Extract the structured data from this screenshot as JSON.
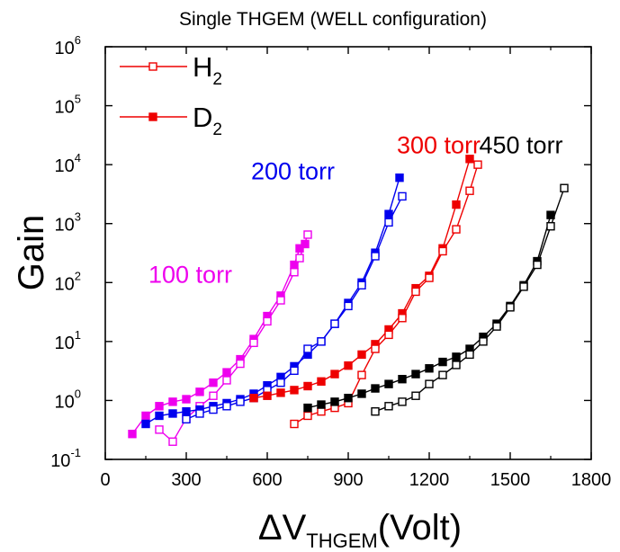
{
  "chart_data": {
    "type": "line",
    "title": "Single THGEM (WELL configuration)",
    "xlabel": {
      "main": "ΔV",
      "sub": "THGEM",
      "tail": "(Volt)"
    },
    "ylabel": "Gain",
    "xlim": [
      0,
      1800
    ],
    "ylim": [
      0.1,
      1000000
    ],
    "yscale": "log",
    "grid": false,
    "legend_position": "top-left",
    "x_ticks": [
      "0",
      "300",
      "600",
      "900",
      "1200",
      "1500",
      "1800"
    ],
    "y_ticks": [
      {
        "base": "10",
        "exp": "-1",
        "value": 0.1
      },
      {
        "base": "10",
        "exp": "0",
        "value": 1
      },
      {
        "base": "10",
        "exp": "1",
        "value": 10
      },
      {
        "base": "10",
        "exp": "2",
        "value": 100
      },
      {
        "base": "10",
        "exp": "3",
        "value": 1000
      },
      {
        "base": "10",
        "exp": "4",
        "value": 10000
      },
      {
        "base": "10",
        "exp": "5",
        "value": 100000
      },
      {
        "base": "10",
        "exp": "6",
        "value": 1000000
      }
    ],
    "legend": [
      {
        "base": "H",
        "sub": "2",
        "marker": "open-square",
        "color": "#ee0000"
      },
      {
        "base": "D",
        "sub": "2",
        "marker": "filled-square",
        "color": "#ee0000"
      }
    ],
    "annotations": [
      {
        "text": "100 torr",
        "color": "#ee00ee",
        "x": 160,
        "y": 100
      },
      {
        "text": "200 torr",
        "color": "#0000ee",
        "x": 540,
        "y": 5600
      },
      {
        "text": "300 torr",
        "color": "#ee0000",
        "x": 1080,
        "y": 15500
      },
      {
        "text": "450 torr",
        "color": "#000000",
        "x": 1385,
        "y": 15500
      }
    ],
    "series": [
      {
        "pressure": "100 torr",
        "gas": "D2",
        "color": "#ee00ee",
        "marker": "filled",
        "x": [
          100,
          150,
          200,
          250,
          300,
          350,
          400,
          450,
          500,
          550,
          600,
          650,
          700,
          720,
          740
        ],
        "y": [
          0.27,
          0.55,
          0.8,
          0.95,
          1.05,
          1.4,
          2.0,
          3.0,
          5.0,
          11,
          27,
          60,
          200,
          380,
          450
        ]
      },
      {
        "pressure": "100 torr",
        "gas": "H2",
        "color": "#ee00ee",
        "marker": "open",
        "x": [
          200,
          250,
          300,
          350,
          400,
          450,
          500,
          550,
          600,
          650,
          700,
          720,
          750
        ],
        "y": [
          0.32,
          0.2,
          0.5,
          0.8,
          1.2,
          2.2,
          4.2,
          9.5,
          22,
          50,
          150,
          260,
          650
        ]
      },
      {
        "pressure": "200 torr",
        "gas": "D2",
        "color": "#0000ee",
        "marker": "filled",
        "x": [
          150,
          200,
          250,
          300,
          350,
          400,
          450,
          500,
          550,
          600,
          650,
          700,
          750,
          800,
          850,
          900,
          950,
          1000,
          1050,
          1090
        ],
        "y": [
          0.4,
          0.55,
          0.6,
          0.65,
          0.7,
          0.8,
          0.9,
          1.05,
          1.3,
          1.8,
          2.5,
          3.8,
          6.0,
          10,
          20,
          45,
          100,
          320,
          1450,
          6000
        ]
      },
      {
        "pressure": "200 torr",
        "gas": "H2",
        "color": "#0000ee",
        "marker": "open",
        "x": [
          300,
          350,
          400,
          450,
          500,
          550,
          600,
          650,
          700,
          750,
          800,
          850,
          900,
          950,
          1000,
          1050,
          1100
        ],
        "y": [
          0.48,
          0.6,
          0.7,
          0.8,
          0.95,
          1.1,
          1.5,
          2.0,
          3.2,
          7.5,
          10,
          20,
          40,
          90,
          280,
          1050,
          2900
        ]
      },
      {
        "pressure": "300 torr",
        "gas": "D2",
        "color": "#ee0000",
        "marker": "filled",
        "x": [
          550,
          600,
          650,
          700,
          750,
          800,
          850,
          900,
          950,
          1000,
          1050,
          1100,
          1150,
          1200,
          1250,
          1300,
          1350
        ],
        "y": [
          1.1,
          1.2,
          1.35,
          1.5,
          1.75,
          2.1,
          2.8,
          3.9,
          6.0,
          9.0,
          16,
          30,
          80,
          130,
          380,
          2100,
          12500
        ]
      },
      {
        "pressure": "300 torr",
        "gas": "H2",
        "color": "#ee0000",
        "marker": "open",
        "x": [
          700,
          750,
          800,
          850,
          900,
          950,
          1000,
          1050,
          1100,
          1150,
          1200,
          1250,
          1300,
          1350,
          1380
        ],
        "y": [
          0.4,
          0.55,
          0.65,
          0.75,
          0.9,
          2.7,
          7.5,
          13,
          25,
          70,
          120,
          340,
          800,
          3600,
          10000
        ]
      },
      {
        "pressure": "450 torr",
        "gas": "D2",
        "color": "#000000",
        "marker": "filled",
        "x": [
          750,
          800,
          850,
          900,
          950,
          1000,
          1050,
          1100,
          1150,
          1200,
          1250,
          1300,
          1350,
          1400,
          1450,
          1500,
          1550,
          1600,
          1650
        ],
        "y": [
          0.75,
          0.85,
          0.95,
          1.1,
          1.3,
          1.6,
          1.9,
          2.3,
          2.8,
          3.5,
          4.5,
          5.5,
          7.5,
          12,
          20,
          40,
          90,
          230,
          1400
        ]
      },
      {
        "pressure": "450 torr",
        "gas": "H2",
        "color": "#000000",
        "marker": "open",
        "x": [
          1000,
          1050,
          1100,
          1150,
          1200,
          1250,
          1300,
          1350,
          1400,
          1450,
          1500,
          1550,
          1600,
          1650,
          1700
        ],
        "y": [
          0.65,
          0.8,
          0.95,
          1.2,
          1.9,
          2.7,
          4.0,
          6.0,
          10,
          18,
          38,
          85,
          200,
          900,
          4000
        ]
      }
    ]
  }
}
